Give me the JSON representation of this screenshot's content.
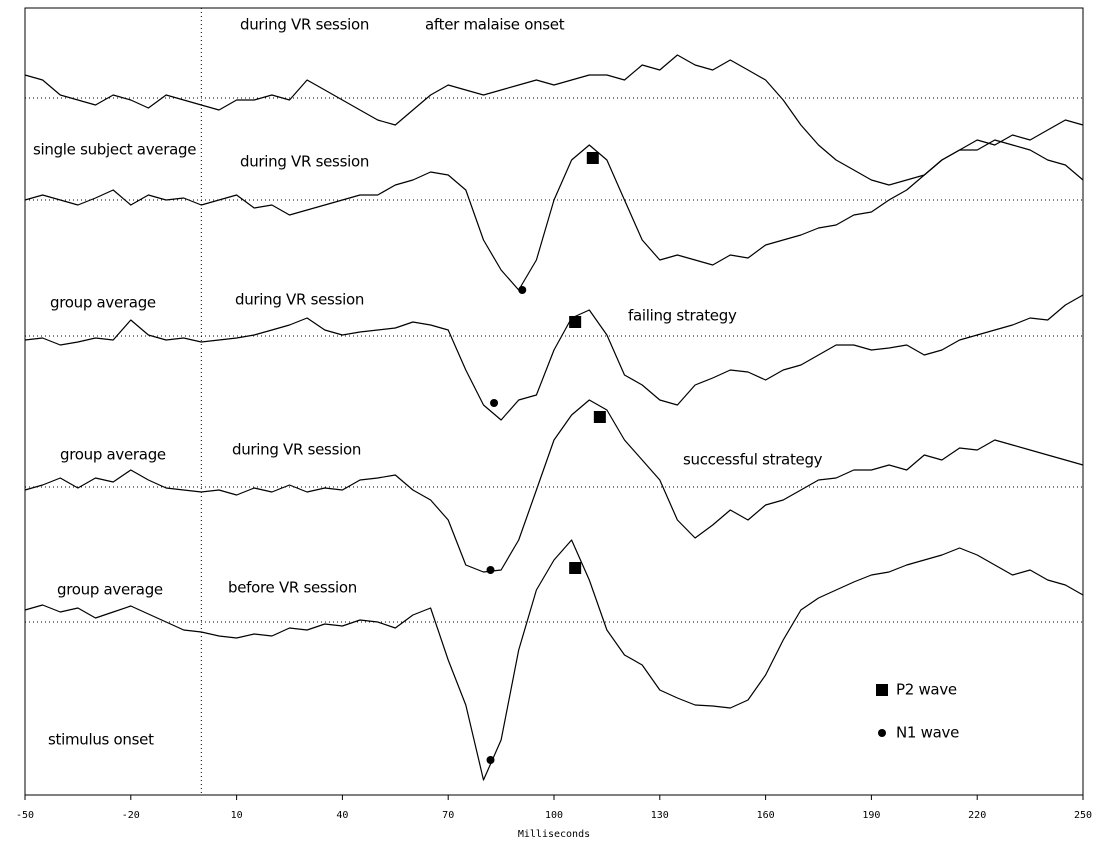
{
  "chart_data": {
    "type": "line",
    "xlabel": "Milliseconds",
    "xlim": [
      -50,
      250
    ],
    "xticks": [
      -50,
      -20,
      10,
      40,
      70,
      100,
      130,
      160,
      190,
      220,
      250
    ],
    "ylim": [
      0,
      787
    ],
    "onset_x": 0,
    "x": [
      -50,
      -45,
      -40,
      -35,
      -30,
      -25,
      -20,
      -15,
      -10,
      -5,
      0,
      5,
      10,
      15,
      20,
      25,
      30,
      35,
      40,
      45,
      50,
      55,
      60,
      65,
      70,
      75,
      80,
      85,
      90,
      95,
      100,
      105,
      110,
      115,
      120,
      125,
      130,
      135,
      140,
      145,
      150,
      155,
      160,
      165,
      170,
      175,
      180,
      185,
      190,
      195,
      200,
      205,
      210,
      215,
      220,
      225,
      230,
      235,
      240,
      245,
      250
    ],
    "series": [
      {
        "color": "#000000",
        "baseline": 697,
        "values": [
          720,
          715,
          700,
          695,
          690,
          700,
          695,
          687,
          700,
          695,
          690,
          685,
          695,
          695,
          700,
          695,
          715,
          705,
          695,
          685,
          675,
          670,
          685,
          700,
          710,
          705,
          700,
          705,
          710,
          715,
          710,
          715,
          720,
          720,
          715,
          730,
          725,
          740,
          730,
          725,
          735,
          725,
          715,
          695,
          670,
          650,
          635,
          625,
          615,
          610,
          615,
          620,
          635,
          645,
          645,
          655,
          650,
          645,
          635,
          630,
          615
        ]
      },
      {
        "color": "#000000",
        "baseline": 595,
        "values": [
          595,
          600,
          595,
          590,
          597,
          605,
          590,
          600,
          595,
          597,
          590,
          595,
          600,
          587,
          590,
          580,
          585,
          590,
          595,
          600,
          600,
          610,
          615,
          623,
          620,
          605,
          555,
          525,
          505,
          535,
          595,
          635,
          650,
          635,
          595,
          555,
          535,
          540,
          535,
          530,
          540,
          537,
          550,
          555,
          560,
          567,
          570,
          580,
          583,
          595,
          605,
          620,
          635,
          645,
          655,
          650,
          660,
          655,
          665,
          675,
          670
        ]
      },
      {
        "color": "#000000",
        "baseline": 459,
        "values": [
          455,
          457,
          450,
          453,
          457,
          455,
          475,
          460,
          455,
          457,
          453,
          455,
          457,
          460,
          465,
          470,
          477,
          465,
          460,
          463,
          465,
          467,
          473,
          470,
          465,
          425,
          390,
          375,
          395,
          400,
          445,
          477,
          485,
          460,
          420,
          410,
          395,
          390,
          410,
          417,
          425,
          423,
          415,
          425,
          430,
          440,
          450,
          450,
          445,
          447,
          450,
          440,
          445,
          455,
          460,
          465,
          470,
          477,
          475,
          490,
          500
        ]
      },
      {
        "color": "#000000",
        "baseline": 308,
        "values": [
          305,
          310,
          317,
          307,
          317,
          313,
          325,
          315,
          307,
          305,
          303,
          305,
          300,
          307,
          303,
          310,
          303,
          307,
          305,
          315,
          317,
          320,
          305,
          295,
          275,
          230,
          223,
          225,
          255,
          305,
          355,
          380,
          395,
          385,
          355,
          335,
          315,
          275,
          257,
          270,
          285,
          275,
          290,
          295,
          305,
          315,
          317,
          325,
          325,
          330,
          325,
          340,
          335,
          347,
          345,
          355,
          350,
          345,
          340,
          335,
          330
        ]
      },
      {
        "color": "#000000",
        "baseline": 173,
        "values": [
          185,
          190,
          183,
          187,
          177,
          183,
          189,
          181,
          173,
          165,
          163,
          159,
          157,
          161,
          159,
          167,
          165,
          171,
          169,
          175,
          173,
          167,
          180,
          187,
          135,
          90,
          15,
          55,
          145,
          205,
          235,
          255,
          215,
          165,
          140,
          130,
          105,
          97,
          90,
          89,
          87,
          95,
          120,
          155,
          185,
          197,
          205,
          213,
          220,
          223,
          230,
          235,
          240,
          247,
          240,
          230,
          220,
          225,
          215,
          210,
          200
        ]
      }
    ],
    "markers": [
      {
        "name": "P2 wave",
        "shape": "square",
        "x": [
          111,
          106,
          113,
          106
        ],
        "y": [
          637,
          473,
          378,
          227
        ]
      },
      {
        "name": "N1 wave",
        "shape": "circle",
        "x": [
          91,
          83,
          82,
          82
        ],
        "y": [
          505,
          392,
          225,
          35
        ]
      }
    ],
    "annotations": [
      "during VR session",
      "after malaise onset",
      "single subject average",
      "during VR session",
      "group average",
      "during VR session",
      "failing strategy",
      "group average",
      "during VR session",
      "successful strategy",
      "group average",
      "before VR session",
      "stimulus onset"
    ]
  }
}
